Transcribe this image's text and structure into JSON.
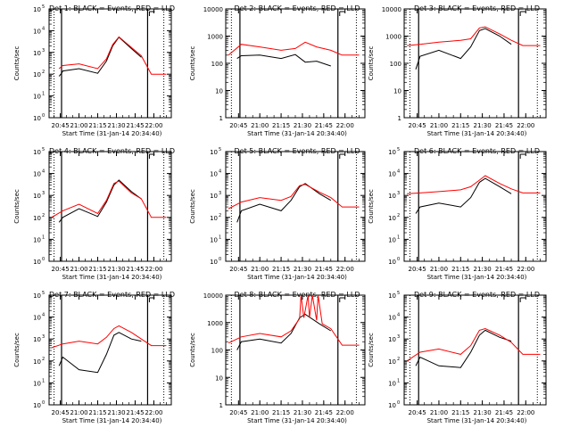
{
  "figure": {
    "xlabel": "Start Time (31-Jan-14 20:34:40)",
    "ylabel": "Counts/sec",
    "x_ticks": [
      "20:45",
      "21:00",
      "21:15",
      "21:30",
      "21:45",
      "22:00"
    ],
    "colors": {
      "events": "#000000",
      "lld": "#ff0000",
      "markers": "#000000"
    }
  },
  "chart_data": [
    {
      "type": "line",
      "title": "Det 1: BLACK = Events, RED = LLD",
      "ylabel": "Counts/sec",
      "yscale": "log",
      "ylim_exp": [
        0,
        5
      ],
      "y_ticks_exp": [
        0,
        1,
        2,
        3,
        4,
        5
      ],
      "y_tick_style": "power",
      "series": [
        {
          "name": "Events",
          "color": "#000000",
          "x": [
            "20:44",
            "20:46",
            "20:47",
            "21:00",
            "21:15",
            "21:22",
            "21:27",
            "21:32",
            "21:42",
            "21:50"
          ],
          "y": [
            80,
            110,
            140,
            180,
            110,
            400,
            2000,
            5000,
            1500,
            600
          ]
        },
        {
          "name": "LLD",
          "color": "#ff0000",
          "x": [
            "20:44",
            "20:47",
            "21:00",
            "21:15",
            "21:22",
            "21:27",
            "21:32",
            "21:42",
            "21:50",
            "21:58",
            "22:10"
          ],
          "y": [
            180,
            250,
            300,
            180,
            500,
            2300,
            5200,
            1700,
            700,
            100,
            100
          ]
        }
      ]
    },
    {
      "type": "line",
      "title": "Det 2: BLACK = Events, RED = LLD",
      "ylabel": "Counts/sec",
      "yscale": "log",
      "ylim_exp": [
        0,
        4
      ],
      "y_ticks_exp": [
        0,
        1,
        2,
        3,
        4
      ],
      "y_tick_style": "plain",
      "series": [
        {
          "name": "Events",
          "color": "#000000",
          "x": [
            "20:44",
            "20:47",
            "21:00",
            "21:15",
            "21:25",
            "21:32",
            "21:40",
            "21:50"
          ],
          "y": [
            150,
            190,
            200,
            150,
            210,
            110,
            120,
            80
          ]
        },
        {
          "name": "LLD",
          "color": "#ff0000",
          "x": [
            "20:38",
            "20:47",
            "21:00",
            "21:15",
            "21:25",
            "21:32",
            "21:40",
            "21:50",
            "21:58",
            "22:10"
          ],
          "y": [
            200,
            500,
            400,
            300,
            350,
            600,
            400,
            300,
            200,
            200
          ]
        }
      ]
    },
    {
      "type": "line",
      "title": "Det 3: BLACK = Events, RED = LLD",
      "ylabel": "Counts/sec",
      "yscale": "log",
      "ylim_exp": [
        0,
        4
      ],
      "y_ticks_exp": [
        0,
        1,
        2,
        3,
        4
      ],
      "y_tick_style": "plain",
      "series": [
        {
          "name": "Events",
          "color": "#000000",
          "x": [
            "20:44",
            "20:47",
            "21:00",
            "21:15",
            "21:22",
            "21:28",
            "21:32",
            "21:42",
            "21:50"
          ],
          "y": [
            60,
            180,
            300,
            150,
            400,
            1600,
            1900,
            1000,
            500
          ]
        },
        {
          "name": "LLD",
          "color": "#ff0000",
          "x": [
            "20:38",
            "20:47",
            "21:00",
            "21:15",
            "21:22",
            "21:28",
            "21:32",
            "21:42",
            "21:50",
            "21:58",
            "22:10"
          ],
          "y": [
            450,
            500,
            600,
            700,
            800,
            2000,
            2200,
            1200,
            700,
            450,
            450
          ]
        }
      ]
    },
    {
      "type": "line",
      "title": "Det 4: BLACK = Events, RED = LLD",
      "ylabel": "Counts/sec",
      "yscale": "log",
      "ylim_exp": [
        0,
        5
      ],
      "y_ticks_exp": [
        0,
        1,
        2,
        3,
        4,
        5
      ],
      "y_tick_style": "power",
      "series": [
        {
          "name": "Events",
          "color": "#000000",
          "x": [
            "20:44",
            "20:47",
            "21:00",
            "21:15",
            "21:22",
            "21:28",
            "21:32",
            "21:42",
            "21:50"
          ],
          "y": [
            60,
            100,
            250,
            110,
            500,
            3000,
            5000,
            1500,
            700
          ]
        },
        {
          "name": "LLD",
          "color": "#ff0000",
          "x": [
            "20:38",
            "20:47",
            "21:00",
            "21:15",
            "21:22",
            "21:28",
            "21:32",
            "21:42",
            "21:50",
            "21:58",
            "22:10"
          ],
          "y": [
            100,
            200,
            400,
            150,
            600,
            3500,
            4500,
            1300,
            700,
            100,
            100
          ]
        }
      ]
    },
    {
      "type": "line",
      "title": "Det 5: BLACK = Events, RED = LLD",
      "ylabel": "Counts/sec",
      "yscale": "log",
      "ylim_exp": [
        0,
        5
      ],
      "y_ticks_exp": [
        0,
        1,
        2,
        3,
        4,
        5
      ],
      "y_tick_style": "power",
      "series": [
        {
          "name": "Events",
          "color": "#000000",
          "x": [
            "20:44",
            "20:47",
            "21:00",
            "21:15",
            "21:22",
            "21:28",
            "21:32",
            "21:42",
            "21:50"
          ],
          "y": [
            60,
            200,
            400,
            200,
            600,
            2500,
            3500,
            1200,
            600
          ]
        },
        {
          "name": "LLD",
          "color": "#ff0000",
          "x": [
            "20:38",
            "20:47",
            "21:00",
            "21:15",
            "21:22",
            "21:28",
            "21:32",
            "21:42",
            "21:50",
            "21:58",
            "22:10"
          ],
          "y": [
            250,
            500,
            800,
            600,
            900,
            2800,
            3200,
            1400,
            800,
            300,
            300
          ]
        }
      ]
    },
    {
      "type": "line",
      "title": "Det 6: BLACK = Events, RED = LLD",
      "ylabel": "Counts/sec",
      "yscale": "log",
      "ylim_exp": [
        0,
        5
      ],
      "y_ticks_exp": [
        0,
        1,
        2,
        3,
        4,
        5
      ],
      "y_tick_style": "power",
      "series": [
        {
          "name": "Events",
          "color": "#000000",
          "x": [
            "20:44",
            "20:47",
            "21:00",
            "21:15",
            "21:22",
            "21:28",
            "21:32",
            "21:42",
            "21:50"
          ],
          "y": [
            150,
            300,
            450,
            300,
            800,
            4000,
            6000,
            2500,
            1200
          ]
        },
        {
          "name": "LLD",
          "color": "#ff0000",
          "x": [
            "20:38",
            "20:47",
            "21:00",
            "21:15",
            "21:22",
            "21:28",
            "21:32",
            "21:42",
            "21:50",
            "21:58",
            "22:10"
          ],
          "y": [
            1200,
            1300,
            1500,
            1800,
            2500,
            5000,
            8000,
            3500,
            2000,
            1300,
            1300
          ]
        }
      ]
    },
    {
      "type": "line",
      "title": "Det 7: BLACK = Events, RED = LLD",
      "ylabel": "Counts/sec",
      "yscale": "log",
      "ylim_exp": [
        0,
        5
      ],
      "y_ticks_exp": [
        0,
        1,
        2,
        3,
        4,
        5
      ],
      "y_tick_style": "power",
      "series": [
        {
          "name": "Events",
          "color": "#000000",
          "x": [
            "20:44",
            "20:47",
            "21:00",
            "21:15",
            "21:22",
            "21:28",
            "21:32",
            "21:42",
            "21:50"
          ],
          "y": [
            60,
            150,
            40,
            30,
            200,
            1500,
            2000,
            1000,
            800
          ]
        },
        {
          "name": "LLD",
          "color": "#ff0000",
          "x": [
            "20:38",
            "20:47",
            "21:00",
            "21:15",
            "21:22",
            "21:28",
            "21:32",
            "21:42",
            "21:50",
            "21:58",
            "22:10"
          ],
          "y": [
            400,
            600,
            800,
            600,
            1200,
            3000,
            4000,
            2000,
            1000,
            500,
            500
          ]
        }
      ]
    },
    {
      "type": "line",
      "title": "Det 8: BLACK = Events, RED = LLD",
      "ylabel": "Counts/sec",
      "yscale": "log",
      "ylim_exp": [
        0,
        4
      ],
      "y_ticks_exp": [
        0,
        1,
        2,
        3,
        4
      ],
      "y_tick_style": "plain",
      "series": [
        {
          "name": "Events",
          "color": "#000000",
          "x": [
            "20:44",
            "20:47",
            "21:00",
            "21:15",
            "21:22",
            "21:28",
            "21:32",
            "21:42",
            "21:50"
          ],
          "y": [
            100,
            200,
            250,
            180,
            400,
            1500,
            2000,
            900,
            500
          ]
        },
        {
          "name": "LLD",
          "color": "#ff0000",
          "x": [
            "20:38",
            "20:47",
            "21:00",
            "21:15",
            "21:22",
            "21:28",
            "21:29",
            "21:31",
            "21:34",
            "21:35",
            "21:37",
            "21:40",
            "21:41",
            "21:44",
            "21:50",
            "21:58",
            "22:10"
          ],
          "y": [
            180,
            300,
            400,
            300,
            500,
            1400,
            10000,
            1500,
            10000,
            1500,
            10000,
            1200,
            10000,
            900,
            600,
            150,
            150
          ]
        }
      ]
    },
    {
      "type": "line",
      "title": "Det 9: BLACK = Events, RED = LLD",
      "ylabel": "Counts/sec",
      "yscale": "log",
      "ylim_exp": [
        0,
        5
      ],
      "y_ticks_exp": [
        0,
        1,
        2,
        3,
        4,
        5
      ],
      "y_tick_style": "power",
      "series": [
        {
          "name": "Events",
          "color": "#000000",
          "x": [
            "20:44",
            "20:47",
            "21:00",
            "21:15",
            "21:22",
            "21:28",
            "21:32",
            "21:42",
            "21:50"
          ],
          "y": [
            60,
            150,
            60,
            50,
            250,
            1500,
            2500,
            1200,
            800
          ]
        },
        {
          "name": "LLD",
          "color": "#ff0000",
          "x": [
            "20:38",
            "20:47",
            "21:00",
            "21:15",
            "21:22",
            "21:28",
            "21:32",
            "21:42",
            "21:50",
            "21:58",
            "22:10"
          ],
          "y": [
            100,
            250,
            350,
            200,
            500,
            2500,
            3000,
            1500,
            700,
            200,
            200
          ]
        }
      ]
    }
  ]
}
